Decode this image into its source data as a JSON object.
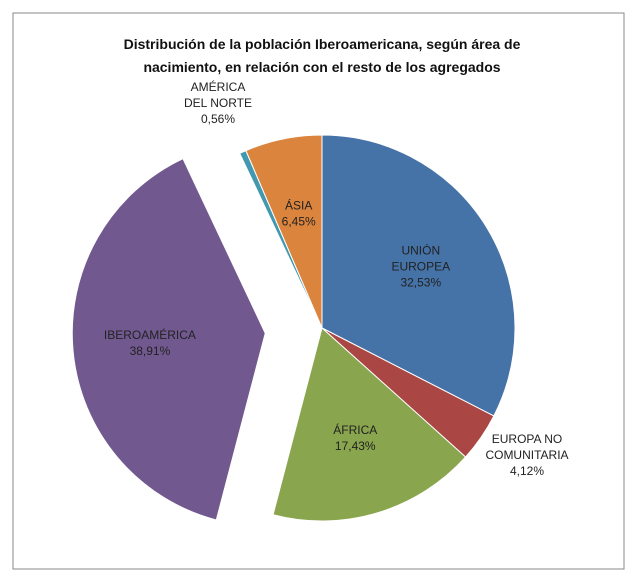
{
  "chart_data": {
    "type": "pie",
    "title": "Distribución de la población Iberoamericana, según  área de\nnacimiento, en relación con el resto de los agregados",
    "categories": [
      "UNIÓN\nEUROPEA",
      "EUROPA NO\nCOMUNITARIA",
      "ÁFRICA",
      "IBEROAMÉRICA",
      "AMÉRICA\nDEL NORTE",
      "ÁSIA"
    ],
    "values": [
      32.53,
      4.12,
      17.43,
      38.91,
      0.56,
      6.45
    ],
    "value_labels": [
      "32,53%",
      "4,12%",
      "17,43%",
      "38,91%",
      "0,56%",
      "6,45%"
    ],
    "colors": [
      "#4572a7",
      "#aa4643",
      "#89a54e",
      "#71588f",
      "#4198af",
      "#db843d"
    ],
    "exploded": [
      "IBEROAMÉRICA"
    ]
  }
}
